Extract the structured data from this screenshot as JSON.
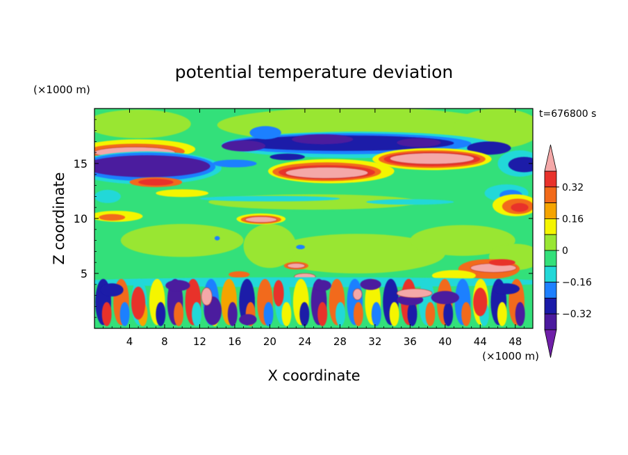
{
  "chart_data": {
    "type": "heatmap",
    "title": "potential temperature deviation",
    "xlabel": "X coordinate",
    "ylabel": "Z coordinate",
    "x_unit_label": "(×1000 m)",
    "y_unit_label": "(×1000 m)",
    "time_label": "t=676800 s",
    "xlim": [
      0,
      50
    ],
    "ylim": [
      0,
      20
    ],
    "x_ticks": [
      4,
      8,
      12,
      16,
      20,
      24,
      28,
      32,
      36,
      40,
      44,
      48
    ],
    "y_ticks": [
      5,
      10,
      15
    ],
    "colorbar": {
      "levels": [
        -0.4,
        -0.32,
        -0.24,
        -0.16,
        -0.08,
        0,
        0.08,
        0.16,
        0.24,
        0.32,
        0.4
      ],
      "tick_labels": [
        "0.32",
        "0.16",
        "0",
        "−0.16",
        "−0.32"
      ],
      "tick_values": [
        0.32,
        0.16,
        0,
        -0.16,
        -0.32
      ],
      "colors_high_to_low": [
        "#f4a8a8",
        "#e8322b",
        "#f26a1a",
        "#f5a400",
        "#f5f500",
        "#99e633",
        "#33e07a",
        "#22d8d8",
        "#1e80ff",
        "#1a1aa8",
        "#4b1a9e",
        "#6f1fa8"
      ]
    },
    "features": [
      {
        "value": 0.4,
        "x": [
          0.5,
          10
        ],
        "z": [
          15.6,
          16.5
        ]
      },
      {
        "value": -0.32,
        "x": [
          0,
          14
        ],
        "z": [
          13.8,
          15.5
        ]
      },
      {
        "value": -0.32,
        "x": [
          14,
          44
        ],
        "z": [
          15.5,
          17.5
        ]
      },
      {
        "value": 0.4,
        "x": [
          22,
          34
        ],
        "z": [
          13.5,
          15.2
        ]
      },
      {
        "value": 0.4,
        "x": [
          32,
          44
        ],
        "z": [
          14.8,
          16.2
        ]
      },
      {
        "value": 0.32,
        "x": [
          4,
          10
        ],
        "z": [
          12.8,
          13.8
        ]
      },
      {
        "value": 0.32,
        "x": [
          46,
          50
        ],
        "z": [
          10.5,
          11.7
        ]
      },
      {
        "value": 0.4,
        "x": [
          17,
          21
        ],
        "z": [
          9.5,
          10.3
        ]
      },
      {
        "value": 0.4,
        "x": [
          22,
          24
        ],
        "z": [
          5.6,
          6.1
        ]
      },
      {
        "value": 0.4,
        "x": [
          42,
          48
        ],
        "z": [
          4.4,
          6.2
        ]
      },
      {
        "value": -0.32,
        "x": [
          0,
          50
        ],
        "z": [
          0.2,
          4.0
        ]
      },
      {
        "value": 0.24,
        "x": [
          0,
          50
        ],
        "z": [
          0.2,
          4.0
        ]
      }
    ]
  }
}
